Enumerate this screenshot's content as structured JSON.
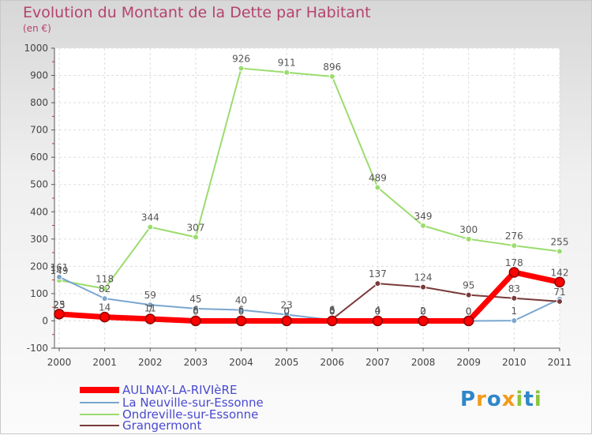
{
  "chart_data": {
    "type": "line",
    "title": "Evolution du Montant de la Dette par Habitant",
    "subtitle": "(en €)",
    "xlabel": "",
    "ylabel": "",
    "categories": [
      "2000",
      "2001",
      "2002",
      "2003",
      "2004",
      "2005",
      "2006",
      "2007",
      "2008",
      "2009",
      "2010",
      "2011"
    ],
    "ylim": [
      -100,
      1000
    ],
    "yticks": [
      -100,
      0,
      100,
      200,
      300,
      400,
      500,
      600,
      700,
      800,
      900,
      1000
    ],
    "grid": true,
    "legend_position": "bottom-left",
    "series": [
      {
        "name": "AULNAY-LA-RIVIèRE",
        "color": "#ff0000",
        "values": [
          25,
          14,
          7,
          0,
          0,
          0,
          0,
          0,
          0,
          0,
          178,
          142
        ],
        "labels": [
          "25",
          "14",
          "7",
          "0",
          "0",
          "0",
          "0",
          "0",
          "0",
          "0",
          "178",
          "142"
        ]
      },
      {
        "name": "La Neuville-sur-Essonne",
        "color": "#7aa6cf",
        "values": [
          161,
          82,
          59,
          45,
          40,
          23,
          3,
          4,
          2,
          0,
          1,
          80
        ],
        "labels": [
          "161",
          "82",
          "59",
          "45",
          "40",
          "23",
          "3",
          "4",
          "2",
          "0",
          "1",
          ""
        ]
      },
      {
        "name": "Ondreville-sur-Essonne",
        "color": "#9bdc6e",
        "values": [
          149,
          118,
          344,
          307,
          926,
          911,
          896,
          489,
          349,
          300,
          276,
          255
        ],
        "labels": [
          "149",
          "118",
          "344",
          "307",
          "926",
          "911",
          "896",
          "489",
          "349",
          "300",
          "276",
          "255"
        ]
      },
      {
        "name": "Grangermont",
        "color": "#7a3a3a",
        "values": [
          23,
          19,
          11,
          6,
          6,
          0,
          6,
          137,
          124,
          95,
          83,
          71
        ],
        "labels": [
          "23",
          "",
          "11",
          "6",
          "6",
          "0",
          "6",
          "137",
          "124",
          "95",
          "83",
          "71"
        ]
      }
    ]
  },
  "brand": {
    "text": "Proxiti"
  }
}
